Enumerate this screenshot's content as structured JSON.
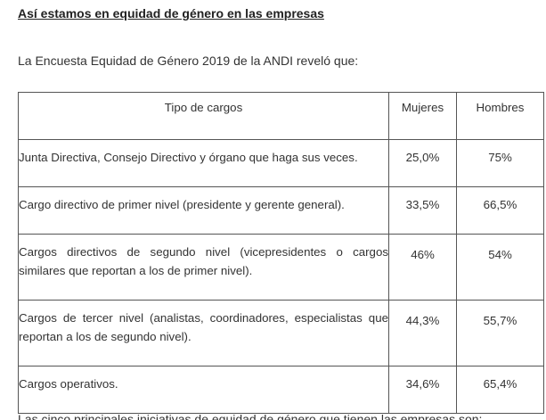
{
  "header": {
    "title": "Así estamos en equidad de género en las empresas"
  },
  "intro": "La Encuesta Equidad de Género 2019 de la ANDI reveló que:",
  "table": {
    "header": [
      "Tipo de cargos",
      "Mujeres",
      "Hombres"
    ],
    "rows": [
      [
        "Junta Directiva, Consejo Directivo y órgano que haga sus veces.",
        "25,0%",
        "75%"
      ],
      [
        "Cargo directivo de primer nivel (presidente y gerente general).",
        "33,5%",
        "66,5%"
      ],
      [
        "Cargos directivos de segundo nivel (vicepresidentes o cargos similares que reportan a los de primer nivel).",
        "46%",
        "54%"
      ],
      [
        "Cargos de tercer nivel (analistas, coordinadores, especialistas que reportan a los de segundo nivel).",
        "44,3%",
        "55,7%"
      ],
      [
        "Cargos operativos.",
        "34,6%",
        "65,4%"
      ]
    ]
  },
  "footer": "Las cinco principales iniciativas de equidad de género que tienen las empresas son:"
}
